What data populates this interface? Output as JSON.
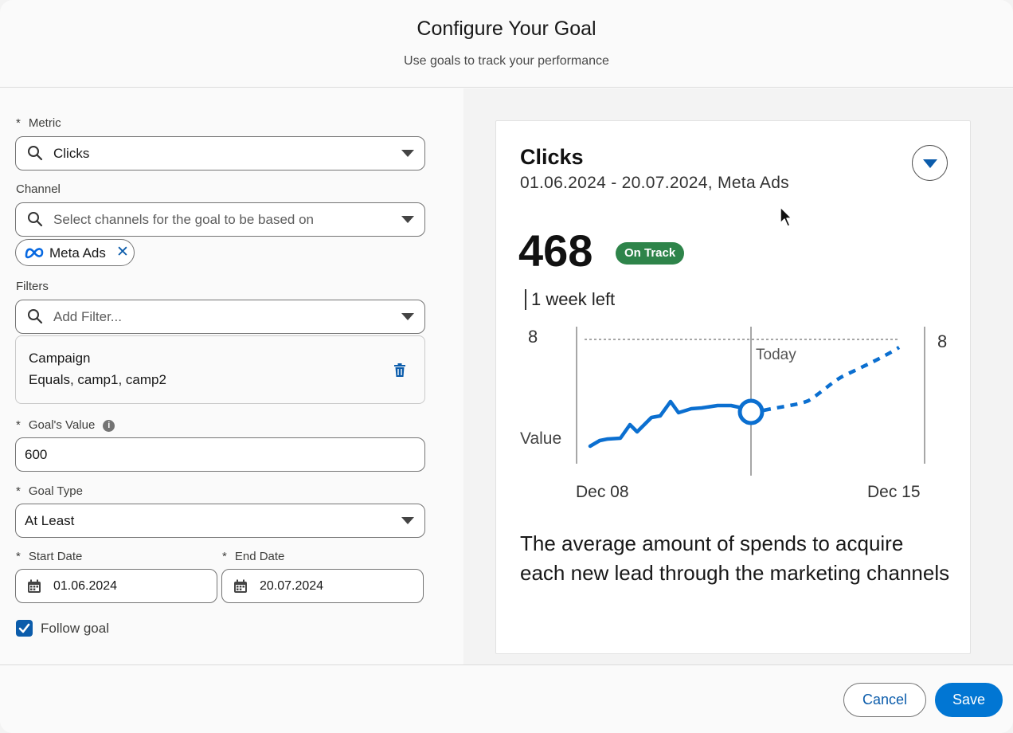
{
  "header": {
    "title": "Configure Your Goal",
    "subtitle": "Use goals to track your performance"
  },
  "form": {
    "required_mark": "*",
    "metric": {
      "label": "Metric",
      "value": "Clicks"
    },
    "channel": {
      "label": "Channel",
      "placeholder": "Select channels for the goal to be based on",
      "selected": [
        "Meta Ads"
      ]
    },
    "filters": {
      "label": "Filters",
      "placeholder": "Add Filter...",
      "items": [
        {
          "name": "Campaign",
          "condition": "Equals, camp1, camp2"
        }
      ]
    },
    "goal_value": {
      "label": "Goal's Value",
      "info_icon": "info-icon",
      "value": "600"
    },
    "goal_type": {
      "label": "Goal Type",
      "value": "At Least"
    },
    "start_date": {
      "label": "Start Date",
      "value": "01.06.2024"
    },
    "end_date": {
      "label": "End Date",
      "value": "20.07.2024"
    },
    "follow_goal": {
      "label": "Follow goal",
      "checked": true
    }
  },
  "card": {
    "title": "Clicks",
    "subtitle": "01.06.2024 - 20.07.2024, Meta Ads",
    "value": "468",
    "status": "On Track",
    "status_color": "#2e844a",
    "time_left": "1 week left",
    "description": "The average amount of spends to acquire each new lead through the marketing channels"
  },
  "chart_data": {
    "type": "line",
    "ylabel": "Value",
    "y_top_label_left": "8",
    "y_top_label_right": "8",
    "today_label": "Today",
    "x_tick_labels": [
      "Dec 08",
      "Dec 15"
    ],
    "actual_color": "#0b6fd0",
    "target_color": "#888888"
  },
  "footer": {
    "cancel_label": "Cancel",
    "save_label": "Save"
  }
}
